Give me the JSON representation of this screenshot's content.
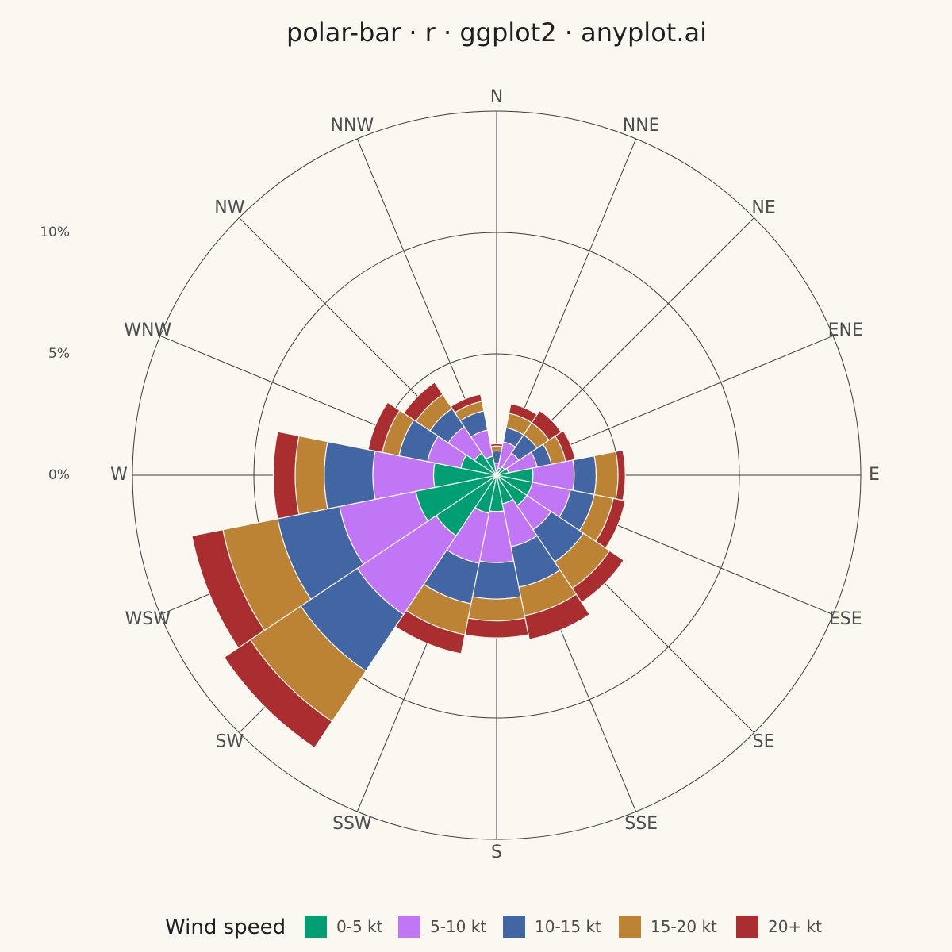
{
  "chart_data": {
    "type": "bar",
    "subtype": "polar-stacked-bar",
    "title": "polar-bar · r · ggplot2 · anyplot.ai",
    "categories": [
      "N",
      "NNE",
      "NE",
      "ENE",
      "E",
      "ESE",
      "SE",
      "SSE",
      "S",
      "SSW",
      "SW",
      "WSW",
      "W",
      "WNW",
      "NW",
      "NNW"
    ],
    "series": [
      {
        "name": "0-5 kt",
        "color": "#009E73",
        "values": [
          0.2,
          0.3,
          0.4,
          0.5,
          1.5,
          1.5,
          1.5,
          1.2,
          1.5,
          1.6,
          3.0,
          3.4,
          2.6,
          1.5,
          1.1,
          0.8
        ]
      },
      {
        "name": "5-10 kt",
        "color": "#C076F5",
        "values": [
          0.3,
          1.1,
          0.7,
          1.2,
          1.7,
          1.6,
          1.2,
          1.8,
          2.1,
          2.1,
          3.9,
          3.2,
          2.5,
          1.4,
          1.3,
          1.1
        ]
      },
      {
        "name": "10-15 kt",
        "color": "#4266A3",
        "values": [
          0.5,
          0.6,
          0.9,
          0.6,
          0.9,
          1.0,
          1.6,
          1.7,
          1.5,
          1.7,
          2.8,
          2.6,
          2.0,
          1.2,
          0.9,
          0.8
        ]
      },
      {
        "name": "15-20 kt",
        "color": "#BD8334",
        "values": [
          0.2,
          0.6,
          0.6,
          0.6,
          0.9,
          0.8,
          1.3,
          1.2,
          0.9,
          1.3,
          2.5,
          2.3,
          1.2,
          0.7,
          0.7,
          0.4
        ]
      },
      {
        "name": "20+ kt",
        "color": "#AA2E2F",
        "values": [
          0.1,
          0.4,
          0.6,
          0.4,
          0.3,
          0.5,
          0.7,
          1.0,
          0.7,
          0.8,
          1.3,
          1.3,
          0.9,
          0.6,
          0.6,
          0.3
        ]
      }
    ],
    "r_ticks": [
      0,
      5,
      10
    ],
    "r_tick_labels": [
      "0%",
      "5%",
      "10%"
    ],
    "r_max": 15,
    "grid": true,
    "legend": {
      "title": "Wind speed",
      "placement": "bottom"
    }
  }
}
